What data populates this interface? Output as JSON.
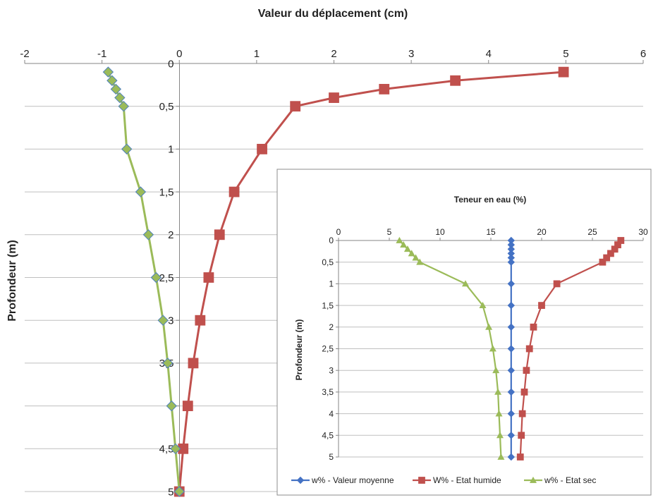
{
  "colors": {
    "blue": "#4472C4",
    "red": "#C0504D",
    "green": "#9BBB59",
    "green_marker_edge": "#4F81BD",
    "grid": "#bfbfbf",
    "axis": "#868686"
  },
  "chart_data": [
    {
      "id": "main",
      "type": "line",
      "orientation": "depth-profile",
      "title": "",
      "xlabel": "Valeur du déplacement (cm)",
      "ylabel": "Profondeur (m)",
      "xlim": [
        -2,
        6
      ],
      "ylim": [
        0,
        5
      ],
      "y_inverted": true,
      "x_axis_position": "top",
      "x_ticks": [
        "-2",
        "-1",
        "0",
        "1",
        "2",
        "3",
        "4",
        "5",
        "6"
      ],
      "y_ticks": [
        "0",
        "0,5",
        "1",
        "1,5",
        "2",
        "2,5",
        "3",
        "3,5",
        "4",
        "4,5",
        "5"
      ],
      "grid": "horizontal",
      "series": [
        {
          "color": "#C0504D",
          "marker": "square",
          "points": [
            [
              4.97,
              0.1
            ],
            [
              3.57,
              0.2
            ],
            [
              2.65,
              0.3
            ],
            [
              2.0,
              0.4
            ],
            [
              1.5,
              0.5
            ],
            [
              1.07,
              1.0
            ],
            [
              0.71,
              1.5
            ],
            [
              0.52,
              2.0
            ],
            [
              0.38,
              2.5
            ],
            [
              0.27,
              3.0
            ],
            [
              0.18,
              3.5
            ],
            [
              0.11,
              4.0
            ],
            [
              0.05,
              4.5
            ],
            [
              0.0,
              5.0
            ]
          ]
        },
        {
          "color": "#9BBB59",
          "marker": "diamond",
          "points": [
            [
              -0.92,
              0.1
            ],
            [
              -0.87,
              0.2
            ],
            [
              -0.82,
              0.3
            ],
            [
              -0.77,
              0.4
            ],
            [
              -0.72,
              0.5
            ],
            [
              -0.68,
              1.0
            ],
            [
              -0.5,
              1.5
            ],
            [
              -0.4,
              2.0
            ],
            [
              -0.3,
              2.5
            ],
            [
              -0.21,
              3.0
            ],
            [
              -0.15,
              3.5
            ],
            [
              -0.1,
              4.0
            ],
            [
              -0.05,
              4.5
            ],
            [
              0.0,
              5.0
            ]
          ]
        }
      ]
    },
    {
      "id": "inset",
      "type": "line",
      "orientation": "depth-profile",
      "title": "",
      "xlabel": "Teneur en eau (%)",
      "ylabel": "Profondeur (m)",
      "xlim": [
        0,
        30
      ],
      "ylim": [
        0,
        5
      ],
      "y_inverted": true,
      "x_axis_position": "top",
      "x_ticks": [
        "0",
        "5",
        "10",
        "15",
        "20",
        "25",
        "30"
      ],
      "y_ticks": [
        "0",
        "0,5",
        "1",
        "1,5",
        "2",
        "2,5",
        "3",
        "3,5",
        "4",
        "4,5",
        "5"
      ],
      "grid": "horizontal",
      "legend": "bottom",
      "series": [
        {
          "name": "w% - Valeur moyenne",
          "color": "#4472C4",
          "marker": "diamond",
          "points": [
            [
              17.0,
              0.0
            ],
            [
              17.0,
              0.1
            ],
            [
              17.0,
              0.2
            ],
            [
              17.0,
              0.3
            ],
            [
              17.0,
              0.4
            ],
            [
              17.0,
              0.5
            ],
            [
              17.0,
              1.0
            ],
            [
              17.0,
              1.5
            ],
            [
              17.0,
              2.0
            ],
            [
              17.0,
              2.5
            ],
            [
              17.0,
              3.0
            ],
            [
              17.0,
              3.5
            ],
            [
              17.0,
              4.0
            ],
            [
              17.0,
              4.5
            ],
            [
              17.0,
              5.0
            ]
          ]
        },
        {
          "name": "W% - Etat humide",
          "color": "#C0504D",
          "marker": "square",
          "points": [
            [
              27.8,
              0.0
            ],
            [
              27.5,
              0.1
            ],
            [
              27.2,
              0.2
            ],
            [
              26.8,
              0.3
            ],
            [
              26.4,
              0.4
            ],
            [
              26.0,
              0.5
            ],
            [
              21.5,
              1.0
            ],
            [
              20.0,
              1.5
            ],
            [
              19.2,
              2.0
            ],
            [
              18.8,
              2.5
            ],
            [
              18.5,
              3.0
            ],
            [
              18.3,
              3.5
            ],
            [
              18.1,
              4.0
            ],
            [
              18.0,
              4.5
            ],
            [
              17.9,
              5.0
            ]
          ]
        },
        {
          "name": "w% - Etat sec",
          "color": "#9BBB59",
          "marker": "triangle",
          "points": [
            [
              6.0,
              0.0
            ],
            [
              6.4,
              0.1
            ],
            [
              6.8,
              0.2
            ],
            [
              7.2,
              0.3
            ],
            [
              7.6,
              0.4
            ],
            [
              8.0,
              0.5
            ],
            [
              12.5,
              1.0
            ],
            [
              14.2,
              1.5
            ],
            [
              14.8,
              2.0
            ],
            [
              15.2,
              2.5
            ],
            [
              15.5,
              3.0
            ],
            [
              15.7,
              3.5
            ],
            [
              15.8,
              4.0
            ],
            [
              15.9,
              4.5
            ],
            [
              16.0,
              5.0
            ]
          ]
        }
      ]
    }
  ]
}
